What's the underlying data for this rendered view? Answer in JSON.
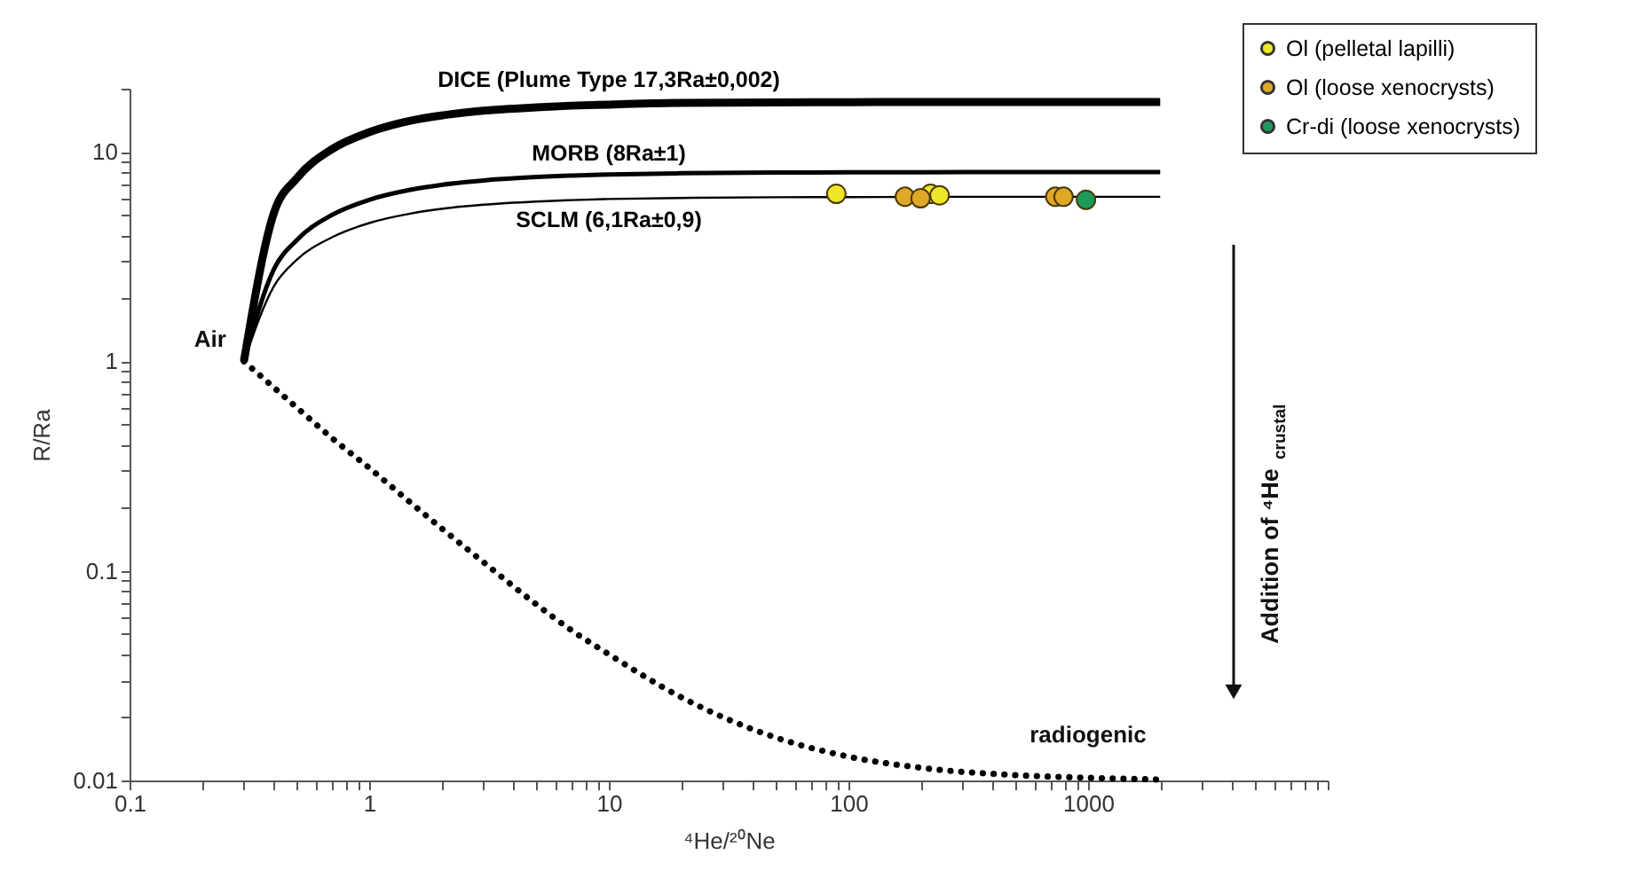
{
  "chart_data": {
    "type": "line",
    "xlabel": "⁴He/²⁰Ne",
    "ylabel": "R/Ra",
    "log": "xy",
    "grid": false,
    "legend": "top right",
    "xlim": [
      0.1,
      10000
    ],
    "ylim": [
      0.01,
      20
    ],
    "xticks": [
      0.1,
      {
        "value": 0.2,
        "label": null
      },
      {
        "value": 0.3,
        "label": null
      },
      {
        "value": 0.4,
        "label": null
      },
      {
        "value": 0.5,
        "label": null
      },
      {
        "value": 0.6,
        "label": null
      },
      {
        "value": 0.7,
        "label": null
      },
      {
        "value": 0.8,
        "label": null
      },
      {
        "value": 0.9,
        "label": null
      },
      1,
      {
        "value": 2,
        "label": null
      },
      {
        "value": 3,
        "label": null
      },
      {
        "value": 4,
        "label": null
      },
      {
        "value": 5,
        "label": null
      },
      {
        "value": 6,
        "label": null
      },
      {
        "value": 7,
        "label": null
      },
      {
        "value": 8,
        "label": null
      },
      {
        "value": 9,
        "label": null
      },
      10,
      {
        "value": 20,
        "label": null
      },
      {
        "value": 30,
        "label": null
      },
      {
        "value": 40,
        "label": null
      },
      {
        "value": 50,
        "label": null
      },
      {
        "value": 60,
        "label": null
      },
      {
        "value": 70,
        "label": null
      },
      {
        "value": 80,
        "label": null
      },
      {
        "value": 90,
        "label": null
      },
      100,
      {
        "value": 200,
        "label": null
      },
      {
        "value": 300,
        "label": null
      },
      {
        "value": 400,
        "label": null
      },
      {
        "value": 500,
        "label": null
      },
      {
        "value": 600,
        "label": null
      },
      {
        "value": 700,
        "label": null
      },
      {
        "value": 800,
        "label": null
      },
      {
        "value": 900,
        "label": null
      },
      1000,
      {
        "value": 2000,
        "label": null
      },
      {
        "value": 3000,
        "label": null
      },
      {
        "value": 4000,
        "label": null
      },
      {
        "value": 5000,
        "label": null
      },
      {
        "value": 6000,
        "label": null
      },
      {
        "value": 7000,
        "label": null
      },
      {
        "value": 8000,
        "label": null
      },
      {
        "value": 9000,
        "label": null
      },
      {
        "value": 10000,
        "label": null
      }
    ],
    "yticks": [
      0.01,
      {
        "value": 0.02,
        "label": null
      },
      {
        "value": 0.03,
        "label": null
      },
      {
        "value": 0.04,
        "label": null
      },
      {
        "value": 0.05,
        "label": null
      },
      {
        "value": 0.06,
        "label": null
      },
      {
        "value": 0.07,
        "label": null
      },
      {
        "value": 0.08,
        "label": null
      },
      {
        "value": 0.09,
        "label": null
      },
      0.1,
      {
        "value": 0.2,
        "label": null
      },
      {
        "value": 0.3,
        "label": null
      },
      {
        "value": 0.4,
        "label": null
      },
      {
        "value": 0.5,
        "label": null
      },
      {
        "value": 0.6,
        "label": null
      },
      {
        "value": 0.7,
        "label": null
      },
      {
        "value": 0.8,
        "label": null
      },
      {
        "value": 0.9,
        "label": null
      },
      1,
      {
        "value": 2,
        "label": null
      },
      {
        "value": 3,
        "label": null
      },
      {
        "value": 4,
        "label": null
      },
      {
        "value": 5,
        "label": null
      },
      {
        "value": 6,
        "label": null
      },
      {
        "value": 7,
        "label": null
      },
      {
        "value": 8,
        "label": null
      },
      {
        "value": 9,
        "label": null
      },
      10,
      {
        "value": 20,
        "label": null
      }
    ],
    "series": [
      {
        "name": "DICE (Plume Type 17,3Ra±0,002)",
        "color": "#000000",
        "line_style": "solid",
        "marker": "none",
        "x": [
          0.3,
          0.4,
          0.5,
          0.7,
          1,
          1.5,
          2,
          3,
          5,
          7,
          10,
          20,
          50,
          100,
          200,
          500,
          1000,
          2000
        ],
        "values": [
          1,
          5.1,
          7.5,
          10.3,
          12.4,
          14.1,
          14.9,
          15.7,
          16.3,
          16.6,
          16.8,
          17.1,
          17.2,
          17.25,
          17.3,
          17.3,
          17.3,
          17.3
        ]
      },
      {
        "name": "MORB (8Ra±1)",
        "color": "#000000",
        "line_style": "solid",
        "marker": "none",
        "x": [
          0.3,
          0.4,
          0.5,
          0.7,
          1,
          1.5,
          2,
          3,
          5,
          7,
          10,
          20,
          50,
          100,
          200,
          500,
          1000,
          2000
        ],
        "values": [
          1,
          2.75,
          3.8,
          5,
          5.9,
          6.6,
          6.95,
          7.3,
          7.58,
          7.7,
          7.79,
          7.9,
          7.96,
          7.98,
          7.99,
          8,
          8,
          8
        ]
      },
      {
        "name": "SCLM (6,1Ra±0,9)",
        "color": "#000000",
        "line_style": "solid",
        "marker": "none",
        "x": [
          0.3,
          0.4,
          0.5,
          0.7,
          1,
          1.5,
          2,
          3,
          5,
          7,
          10,
          20,
          50,
          100,
          200,
          500,
          1000,
          2000
        ],
        "values": [
          1,
          2.28,
          3.06,
          3.91,
          4.57,
          5.08,
          5.34,
          5.59,
          5.79,
          5.88,
          5.95,
          6.02,
          6.07,
          6.08,
          6.09,
          6.1,
          6.1,
          6.1
        ]
      },
      {
        "color": "#000000",
        "line_style": "dotted",
        "marker": "none",
        "x": [
          0.3,
          0.4,
          0.5,
          0.7,
          1,
          1.5,
          2,
          3,
          5,
          7,
          10,
          20,
          50,
          100,
          200,
          500,
          1000,
          2000
        ],
        "values": [
          1,
          0.75,
          0.6,
          0.43,
          0.31,
          0.21,
          0.16,
          0.11,
          0.069,
          0.052,
          0.04,
          0.025,
          0.016,
          0.013,
          0.0115,
          0.0106,
          0.0103,
          0.0101
        ]
      },
      {
        "type": "scatter",
        "name": "Ol (pelletal lapilli)",
        "color": "#f0e628",
        "marker": "circle",
        "x": [
          89,
          220,
          240
        ],
        "values": [
          6.3,
          6.3,
          6.2
        ]
      },
      {
        "type": "scatter",
        "name": "Ol (loose xenocrysts)",
        "color": "#e0a828",
        "marker": "circle",
        "x": [
          172,
          200,
          730,
          790
        ],
        "values": [
          6.1,
          6.0,
          6.1,
          6.1
        ]
      },
      {
        "type": "scatter",
        "name": "Cr-di (loose xenocrysts)",
        "color": "#1f9a5a",
        "marker": "circle",
        "x": [
          980
        ],
        "values": [
          5.9
        ]
      }
    ],
    "annotations": [
      {
        "text": "Air",
        "x": 0.3,
        "y": 1
      },
      {
        "text": "radiogenic",
        "x": 1000,
        "y": 0.0103
      },
      "Addition of ⁴He$_{crustal}$"
    ]
  }
}
